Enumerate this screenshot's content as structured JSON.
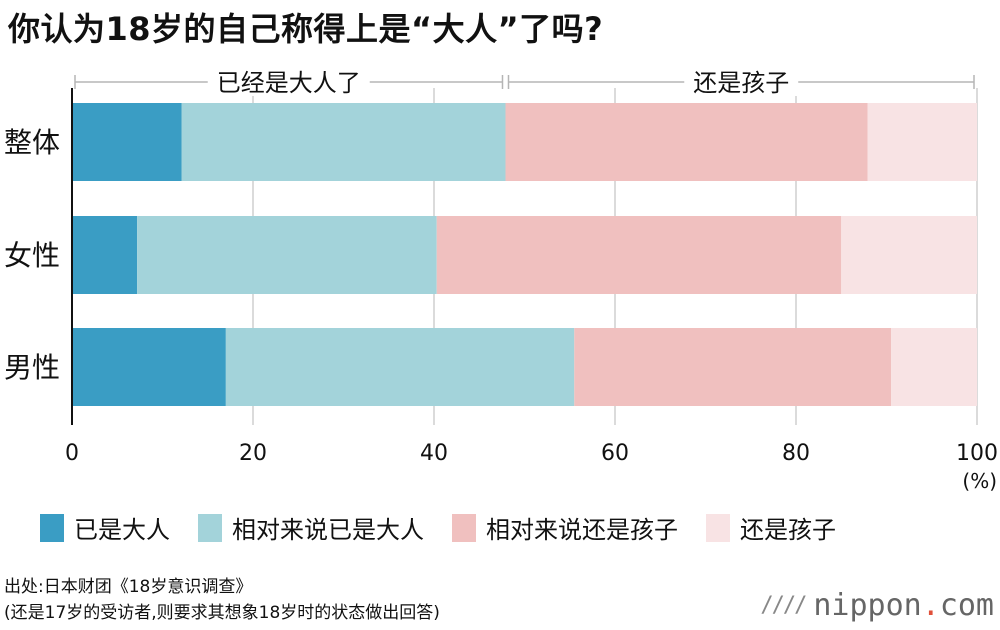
{
  "title": "你认为18岁的自己称得上是“大人”了吗?",
  "chart_data": {
    "type": "bar",
    "orientation": "horizontal",
    "stacked": true,
    "categories": [
      "整体",
      "女性",
      "男性"
    ],
    "series": [
      {
        "name": "已是大人",
        "color": "#3a9dc4",
        "values": [
          12.1,
          7.2,
          17.0
        ]
      },
      {
        "name": "相对来说已是大人",
        "color": "#a3d3da",
        "values": [
          35.8,
          33.1,
          38.5
        ]
      },
      {
        "name": "相对来说还是孩子",
        "color": "#f0c0bf",
        "values": [
          40.0,
          44.7,
          35.0
        ]
      },
      {
        "name": "还是孩子",
        "color": "#f8e3e4",
        "values": [
          12.1,
          15.0,
          9.5
        ]
      }
    ],
    "xlim": [
      0,
      100
    ],
    "xticks": [
      "0",
      "20",
      "40",
      "60",
      "80",
      "100"
    ],
    "xunit": "(%)",
    "grid": true,
    "legend_position": "bottom",
    "groups": [
      {
        "label": "已经是大人了",
        "range": [
          0,
          47.9
        ]
      },
      {
        "label": "还是孩子",
        "range": [
          47.9,
          100
        ]
      }
    ]
  },
  "source_line1": "出处:日本财团《18岁意识调查》",
  "source_line2": "(还是17岁的受访者,则要求其想象18岁时的状态做出回答)",
  "brand": {
    "slashes": "////",
    "name": "nippon",
    "dot": ".",
    "tld": "com"
  }
}
